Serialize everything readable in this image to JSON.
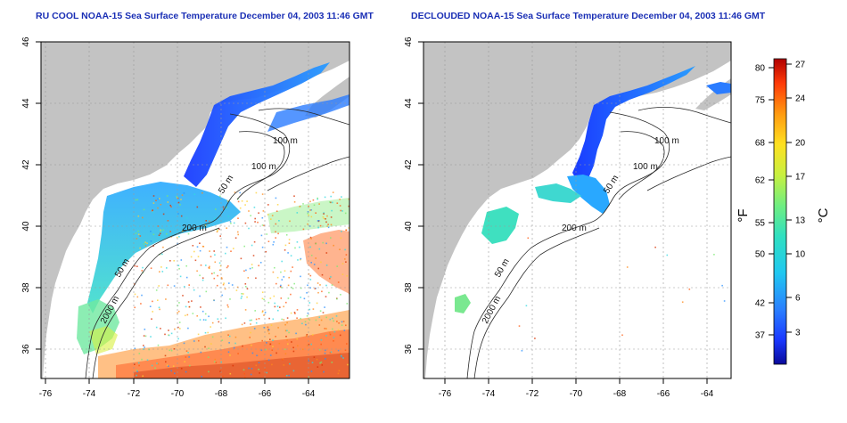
{
  "left_panel": {
    "title": "RU COOL NOAA-15 Sea Surface Temperature December 04, 2003 11:46 GMT",
    "contour_labels": [
      "100 m",
      "100 m",
      "50 m",
      "200 m",
      "50 m",
      "2000 m"
    ]
  },
  "right_panel": {
    "title": "DECLOUDED NOAA-15 Sea Surface Temperature December 04, 2003 11:46 GMT",
    "contour_labels": [
      "100 m",
      "100 m",
      "50 m",
      "200 m",
      "50 m",
      "2000 m"
    ]
  },
  "axes": {
    "lon_ticks": [
      "-76",
      "-74",
      "-72",
      "-70",
      "-68",
      "-66",
      "-64"
    ],
    "lat_ticks": [
      "46",
      "44",
      "42",
      "40",
      "38",
      "36"
    ]
  },
  "colorbar": {
    "fahrenheit_label": "°F",
    "celsius_label": "°C",
    "fahrenheit_ticks": [
      "80",
      "75",
      "68",
      "62",
      "55",
      "50",
      "42",
      "37"
    ],
    "celsius_ticks": [
      "27",
      "24",
      "20",
      "17",
      "13",
      "10",
      "6",
      "3"
    ]
  },
  "colors": {
    "land": "#c3c3c3",
    "ocean": "#ffffff",
    "title": "#1a2fb5"
  }
}
